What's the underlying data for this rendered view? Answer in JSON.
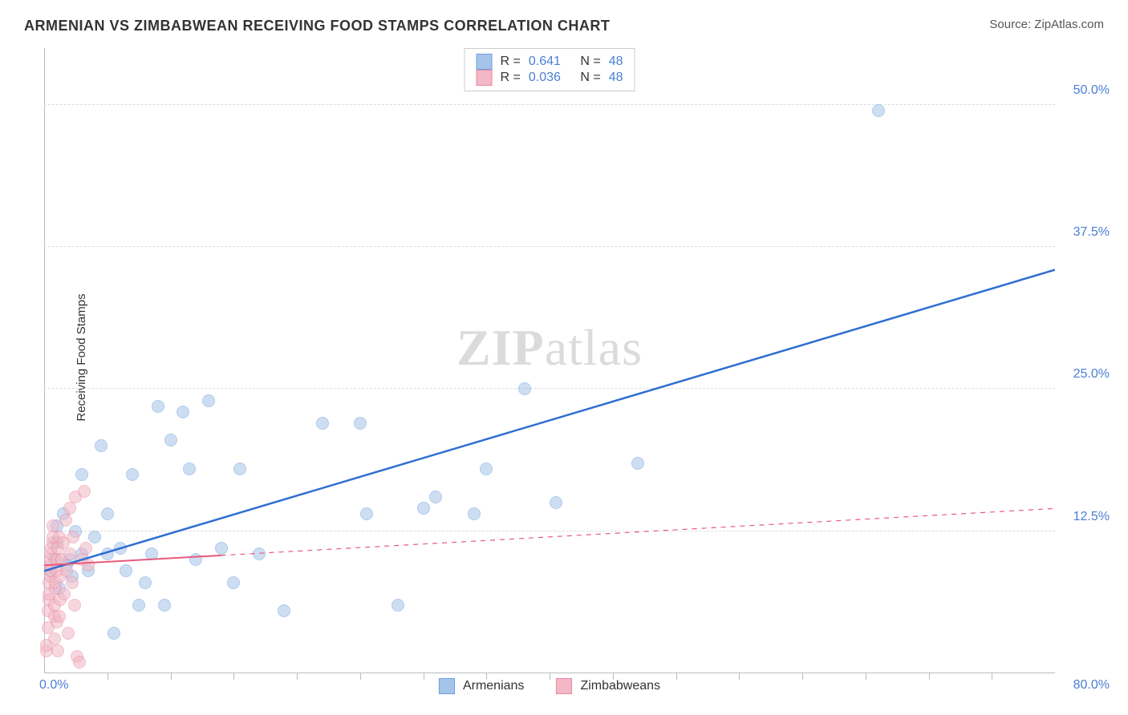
{
  "title": "ARMENIAN VS ZIMBABWEAN RECEIVING FOOD STAMPS CORRELATION CHART",
  "source_prefix": "Source: ",
  "source_name": "ZipAtlas.com",
  "ylabel": "Receiving Food Stamps",
  "watermark_a": "ZIP",
  "watermark_b": "atlas",
  "chart": {
    "type": "scatter",
    "xlim": [
      0,
      80
    ],
    "ylim": [
      0,
      55
    ],
    "x_origin_label": "0.0%",
    "x_max_label": "80.0%",
    "y_ticks": [
      12.5,
      25.0,
      37.5,
      50.0
    ],
    "y_tick_labels": [
      "12.5%",
      "25.0%",
      "37.5%",
      "50.0%"
    ],
    "x_minor_ticks": [
      5,
      10,
      15,
      20,
      25,
      30,
      35,
      40,
      45,
      50,
      55,
      60,
      65,
      70,
      75
    ],
    "background_color": "#ffffff",
    "grid_color": "#dddddd",
    "axis_color": "#bbbbbb",
    "tick_label_color": "#4a7fd4",
    "point_radius": 8,
    "point_opacity": 0.55,
    "series": [
      {
        "name": "Armenians",
        "fill": "#a5c4ea",
        "stroke": "#6f9fdc",
        "R": "0.641",
        "N": "48",
        "trend": {
          "x1": 0,
          "y1": 9.0,
          "x2": 80,
          "y2": 35.5,
          "color": "#2e6fd1",
          "width": 2.5,
          "solid_until_x": 80
        },
        "points": [
          [
            0.5,
            9.0
          ],
          [
            0.8,
            10.0
          ],
          [
            1.0,
            11.5
          ],
          [
            1.0,
            13.0
          ],
          [
            1.2,
            7.5
          ],
          [
            1.5,
            14.0
          ],
          [
            1.8,
            9.5
          ],
          [
            2.0,
            10.0
          ],
          [
            2.2,
            8.5
          ],
          [
            2.5,
            12.5
          ],
          [
            3.0,
            10.5
          ],
          [
            3.0,
            17.5
          ],
          [
            3.5,
            9.0
          ],
          [
            4.0,
            12.0
          ],
          [
            4.5,
            20.0
          ],
          [
            5.0,
            10.5
          ],
          [
            5.0,
            14.0
          ],
          [
            5.5,
            3.5
          ],
          [
            6.0,
            11.0
          ],
          [
            6.5,
            9.0
          ],
          [
            7.0,
            17.5
          ],
          [
            7.5,
            6.0
          ],
          [
            8.0,
            8.0
          ],
          [
            8.5,
            10.5
          ],
          [
            9.0,
            23.5
          ],
          [
            9.5,
            6.0
          ],
          [
            10.0,
            20.5
          ],
          [
            11.0,
            23.0
          ],
          [
            11.5,
            18.0
          ],
          [
            12.0,
            10.0
          ],
          [
            13.0,
            24.0
          ],
          [
            14.0,
            11.0
          ],
          [
            15.0,
            8.0
          ],
          [
            15.5,
            18.0
          ],
          [
            17.0,
            10.5
          ],
          [
            19.0,
            5.5
          ],
          [
            22.0,
            22.0
          ],
          [
            25.0,
            22.0
          ],
          [
            25.5,
            14.0
          ],
          [
            30.0,
            14.5
          ],
          [
            31.0,
            15.5
          ],
          [
            34.0,
            14.0
          ],
          [
            35.0,
            18.0
          ],
          [
            38.0,
            25.0
          ],
          [
            40.5,
            15.0
          ],
          [
            47.0,
            18.5
          ],
          [
            66.0,
            49.5
          ],
          [
            28.0,
            6.0
          ]
        ]
      },
      {
        "name": "Zimbabweans",
        "fill": "#f2b8c5",
        "stroke": "#e98aa0",
        "R": "0.036",
        "N": "48",
        "trend": {
          "x1": 0,
          "y1": 9.5,
          "x2": 80,
          "y2": 14.5,
          "color": "#e65a7c",
          "width": 2,
          "solid_until_x": 14
        },
        "points": [
          [
            0.2,
            2.0
          ],
          [
            0.2,
            2.5
          ],
          [
            0.3,
            4.0
          ],
          [
            0.3,
            5.5
          ],
          [
            0.4,
            6.5
          ],
          [
            0.4,
            7.0
          ],
          [
            0.4,
            8.0
          ],
          [
            0.5,
            8.5
          ],
          [
            0.5,
            9.0
          ],
          [
            0.5,
            9.5
          ],
          [
            0.5,
            10.0
          ],
          [
            0.6,
            10.5
          ],
          [
            0.6,
            11.0
          ],
          [
            0.7,
            11.5
          ],
          [
            0.7,
            12.0
          ],
          [
            0.7,
            13.0
          ],
          [
            0.8,
            3.0
          ],
          [
            0.8,
            5.0
          ],
          [
            0.8,
            6.0
          ],
          [
            0.9,
            7.5
          ],
          [
            0.9,
            8.0
          ],
          [
            1.0,
            4.5
          ],
          [
            1.0,
            9.0
          ],
          [
            1.0,
            10.0
          ],
          [
            1.1,
            11.0
          ],
          [
            1.2,
            5.0
          ],
          [
            1.2,
            12.0
          ],
          [
            1.3,
            6.5
          ],
          [
            1.3,
            8.5
          ],
          [
            1.4,
            10.0
          ],
          [
            1.5,
            11.5
          ],
          [
            1.6,
            7.0
          ],
          [
            1.7,
            13.5
          ],
          [
            1.8,
            9.0
          ],
          [
            2.0,
            10.5
          ],
          [
            2.0,
            14.5
          ],
          [
            2.2,
            8.0
          ],
          [
            2.3,
            12.0
          ],
          [
            2.5,
            15.5
          ],
          [
            2.6,
            1.5
          ],
          [
            2.8,
            1.0
          ],
          [
            3.0,
            10.0
          ],
          [
            3.2,
            16.0
          ],
          [
            3.5,
            9.5
          ],
          [
            3.3,
            11.0
          ],
          [
            2.4,
            6.0
          ],
          [
            1.9,
            3.5
          ],
          [
            1.1,
            2.0
          ]
        ]
      }
    ],
    "legend_top": {
      "R_label": "R =",
      "N_label": "N ="
    },
    "legend_bottom_labels": [
      "Armenians",
      "Zimbabweans"
    ]
  }
}
